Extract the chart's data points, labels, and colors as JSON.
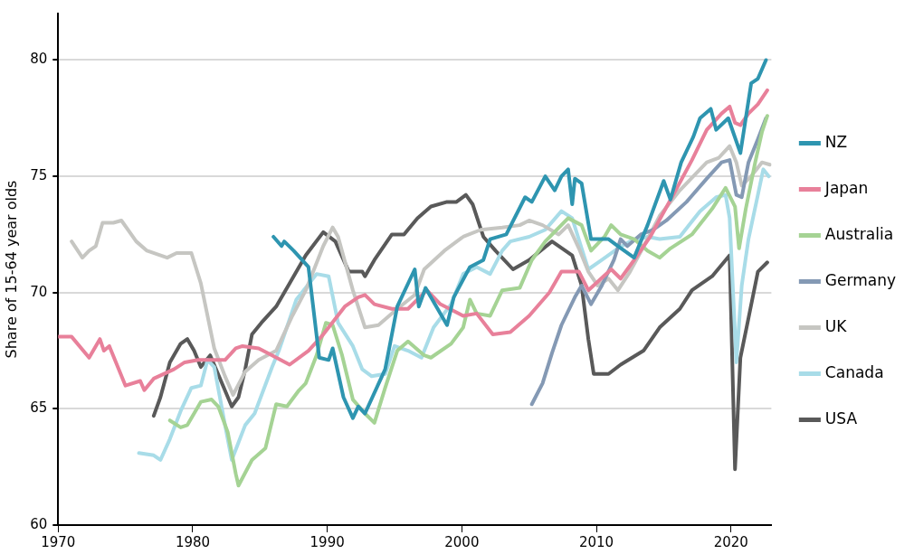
{
  "chart_data": {
    "type": "line",
    "ylabel": "Share of 15-64 year olds",
    "xlim": [
      1970,
      2023
    ],
    "xticks": [
      1970,
      1980,
      1990,
      2000,
      2010,
      2020
    ],
    "ylim": [
      60,
      82
    ],
    "yticks": [
      60,
      65,
      70,
      75,
      80
    ],
    "grid": "y",
    "legend": "right",
    "marker": "none",
    "line_style": "solid",
    "series": [
      {
        "name": "NZ",
        "color": "#2e95b0",
        "x": [
          1986.0,
          1986.6,
          1986.8,
          1987.5,
          1988.6,
          1989.4,
          1990.1,
          1990.4,
          1991.2,
          1991.9,
          1992.3,
          1992.8,
          1994.3,
          1995.2,
          1996.5,
          1996.8,
          1997.3,
          1998.5,
          1998.9,
          1999.4,
          2000.6,
          2001.6,
          2002.1,
          2003.3,
          2004.7,
          2005.2,
          2006.2,
          2006.9,
          2007.4,
          2007.9,
          2008.2,
          2008.4,
          2008.9,
          2009.6,
          2010.9,
          2011.6,
          2012.8,
          2013.8,
          2015.0,
          2015.5,
          2016.3,
          2017.2,
          2017.7,
          2018.5,
          2018.9,
          2019.8,
          2020.7,
          2021.5,
          2022.0,
          2022.6
        ],
        "values": [
          72.4,
          72.0,
          72.2,
          71.8,
          71.1,
          67.2,
          67.1,
          67.6,
          65.5,
          64.6,
          65.1,
          64.8,
          66.7,
          69.4,
          71.0,
          69.4,
          70.2,
          69.0,
          68.6,
          69.8,
          71.1,
          71.4,
          72.3,
          72.5,
          74.1,
          73.9,
          75.0,
          74.4,
          75.0,
          75.3,
          73.8,
          74.9,
          74.7,
          72.3,
          72.3,
          72.0,
          71.5,
          72.9,
          74.8,
          74.0,
          75.6,
          76.7,
          77.5,
          77.9,
          77.0,
          77.5,
          76.0,
          79.0,
          79.2,
          80.0
        ]
      },
      {
        "name": "Japan",
        "color": "#e8809a",
        "x": [
          1970.0,
          1971.0,
          1972.3,
          1973.1,
          1973.4,
          1973.8,
          1975.0,
          1976.1,
          1976.4,
          1977.1,
          1978.6,
          1979.4,
          1980.4,
          1981.4,
          1982.4,
          1983.2,
          1983.7,
          1984.9,
          1985.9,
          1987.2,
          1988.6,
          1989.7,
          1991.3,
          1992.3,
          1992.8,
          1993.5,
          1994.8,
          1996.0,
          1997.4,
          1998.4,
          2000.1,
          2001.1,
          2002.3,
          2003.6,
          2005.0,
          2006.5,
          2007.4,
          2008.7,
          2009.4,
          2011.1,
          2011.8,
          2012.8,
          2014.0,
          2015.7,
          2017.1,
          2018.2,
          2019.3,
          2019.9,
          2020.3,
          2020.7,
          2021.3,
          2022.0,
          2022.7
        ],
        "values": [
          68.1,
          68.1,
          67.2,
          68.0,
          67.5,
          67.7,
          66.0,
          66.2,
          65.8,
          66.3,
          66.7,
          67.0,
          67.1,
          67.1,
          67.1,
          67.6,
          67.7,
          67.6,
          67.3,
          66.9,
          67.5,
          68.2,
          69.4,
          69.8,
          69.9,
          69.5,
          69.3,
          69.3,
          70.1,
          69.5,
          69.0,
          69.1,
          68.2,
          68.3,
          69.0,
          70.0,
          70.9,
          70.9,
          70.1,
          71.0,
          70.6,
          71.4,
          72.4,
          74.2,
          75.7,
          77.0,
          77.7,
          78.0,
          77.3,
          77.2,
          77.7,
          78.1,
          78.7
        ]
      },
      {
        "name": "Australia",
        "color": "#a5d394",
        "x": [
          1978.3,
          1979.1,
          1979.6,
          1980.6,
          1981.4,
          1981.9,
          1982.6,
          1983.2,
          1983.4,
          1984.4,
          1985.4,
          1986.2,
          1987.0,
          1987.9,
          1988.4,
          1989.2,
          1989.9,
          1990.4,
          1991.1,
          1991.9,
          1992.8,
          1993.5,
          1994.3,
          1995.2,
          1996.0,
          1997.2,
          1997.7,
          1999.2,
          2000.1,
          2000.6,
          2001.1,
          2002.1,
          2003.0,
          2004.3,
          2005.2,
          2006.2,
          2007.9,
          2008.9,
          2009.6,
          2010.6,
          2011.1,
          2011.8,
          2012.8,
          2013.8,
          2014.7,
          2015.5,
          2017.1,
          2018.6,
          2019.6,
          2020.3,
          2020.6,
          2021.1,
          2021.8,
          2022.3,
          2022.7
        ],
        "values": [
          64.5,
          64.2,
          64.3,
          65.3,
          65.4,
          65.1,
          64.0,
          62.2,
          61.7,
          62.8,
          63.3,
          65.2,
          65.1,
          65.8,
          66.1,
          67.3,
          68.7,
          68.6,
          67.3,
          65.4,
          64.8,
          64.4,
          65.9,
          67.5,
          67.9,
          67.3,
          67.2,
          67.8,
          68.5,
          69.7,
          69.1,
          69.0,
          70.1,
          70.2,
          71.4,
          72.2,
          73.2,
          72.9,
          71.8,
          72.4,
          72.9,
          72.5,
          72.3,
          71.8,
          71.5,
          71.9,
          72.5,
          73.6,
          74.5,
          73.7,
          71.9,
          73.6,
          75.6,
          76.9,
          77.6
        ]
      },
      {
        "name": "Germany",
        "color": "#8499b4",
        "x": [
          2005.2,
          2006.0,
          2006.7,
          2007.4,
          2008.4,
          2008.9,
          2009.6,
          2010.4,
          2011.3,
          2011.8,
          2012.3,
          2013.3,
          2014.2,
          2015.2,
          2016.7,
          2018.2,
          2019.3,
          2019.9,
          2020.4,
          2020.8,
          2021.3,
          2022.0,
          2022.6
        ],
        "values": [
          65.2,
          66.1,
          67.4,
          68.6,
          69.8,
          70.3,
          69.5,
          70.3,
          71.4,
          72.3,
          72.0,
          72.5,
          72.7,
          73.1,
          73.9,
          74.9,
          75.6,
          75.7,
          74.2,
          74.1,
          75.6,
          76.6,
          77.5
        ]
      },
      {
        "name": "UK",
        "color": "#c6c6c2",
        "x": [
          1971.0,
          1971.8,
          1972.3,
          1972.8,
          1973.3,
          1974.1,
          1974.7,
          1975.8,
          1976.6,
          1978.1,
          1978.8,
          1979.9,
          1980.6,
          1981.6,
          1982.4,
          1983.0,
          1983.9,
          1984.9,
          1986.2,
          1987.4,
          1988.4,
          1989.7,
          1990.4,
          1990.8,
          1991.9,
          1992.8,
          1993.8,
          1995.2,
          1996.5,
          1997.2,
          1998.7,
          2000.1,
          2001.4,
          2003.0,
          2004.3,
          2005.0,
          2006.0,
          2007.2,
          2007.9,
          2008.7,
          2009.4,
          2010.1,
          2010.9,
          2011.6,
          2012.5,
          2013.8,
          2014.7,
          2016.2,
          2018.2,
          2019.1,
          2019.9,
          2020.4,
          2020.8,
          2021.5,
          2022.3,
          2022.9
        ],
        "values": [
          72.2,
          71.5,
          71.8,
          72.0,
          73.0,
          73.0,
          73.1,
          72.2,
          71.8,
          71.5,
          71.7,
          71.7,
          70.4,
          67.6,
          66.4,
          65.6,
          66.6,
          67.1,
          67.5,
          69.0,
          70.1,
          72.0,
          72.8,
          72.4,
          70.1,
          68.5,
          68.6,
          69.3,
          69.9,
          71.0,
          71.8,
          72.4,
          72.7,
          72.8,
          72.9,
          73.1,
          72.9,
          72.5,
          72.9,
          71.9,
          70.9,
          70.3,
          70.6,
          70.1,
          70.9,
          72.3,
          73.3,
          74.4,
          75.6,
          75.8,
          76.3,
          75.6,
          74.6,
          75.0,
          75.6,
          75.5
        ]
      },
      {
        "name": "Canada",
        "color": "#a8dce8",
        "x": [
          1976.0,
          1977.1,
          1977.6,
          1978.3,
          1979.1,
          1979.9,
          1980.6,
          1981.1,
          1981.6,
          1982.4,
          1982.9,
          1983.5,
          1983.9,
          1984.6,
          1985.9,
          1986.4,
          1987.7,
          1989.2,
          1990.1,
          1990.8,
          1991.9,
          1992.6,
          1993.3,
          1994.3,
          1995.0,
          1996.0,
          1997.0,
          1997.9,
          1999.2,
          2000.1,
          2001.1,
          2002.1,
          2003.0,
          2003.6,
          2005.0,
          2006.2,
          2007.4,
          2008.2,
          2008.9,
          2009.4,
          2010.4,
          2011.6,
          2012.5,
          2013.8,
          2014.7,
          2016.2,
          2017.7,
          2018.9,
          2019.6,
          2019.9,
          2020.4,
          2020.8,
          2021.3,
          2022.0,
          2022.4,
          2022.8
        ],
        "values": [
          63.1,
          63.0,
          62.8,
          63.7,
          64.9,
          65.9,
          66.0,
          67.1,
          66.8,
          64.3,
          62.8,
          63.7,
          64.3,
          64.8,
          66.8,
          67.5,
          69.7,
          70.8,
          70.7,
          68.7,
          67.7,
          66.7,
          66.4,
          66.5,
          67.7,
          67.5,
          67.2,
          68.5,
          69.5,
          70.8,
          71.1,
          70.8,
          71.8,
          72.2,
          72.4,
          72.7,
          73.5,
          73.2,
          71.9,
          71.0,
          71.4,
          71.9,
          72.2,
          72.4,
          72.3,
          72.4,
          73.5,
          74.1,
          74.2,
          73.2,
          67.0,
          70.3,
          72.3,
          74.2,
          75.3,
          75.0
        ]
      },
      {
        "name": "USA",
        "color": "#595959",
        "x": [
          1977.1,
          1977.6,
          1978.3,
          1979.1,
          1979.6,
          1980.1,
          1980.6,
          1981.3,
          1982.1,
          1982.9,
          1983.4,
          1983.9,
          1984.4,
          1985.1,
          1986.2,
          1987.2,
          1988.1,
          1988.4,
          1989.7,
          1990.6,
          1991.6,
          1992.6,
          1992.8,
          1993.5,
          1994.8,
          1995.7,
          1996.7,
          1997.7,
          1998.9,
          1999.6,
          2000.3,
          2000.8,
          2001.6,
          2002.5,
          2003.8,
          2005.0,
          2006.7,
          2008.2,
          2008.9,
          2009.4,
          2009.8,
          2010.9,
          2011.8,
          2013.5,
          2014.7,
          2016.2,
          2017.1,
          2018.6,
          2019.9,
          2020.3,
          2020.7,
          2021.3,
          2022.0,
          2022.7
        ],
        "values": [
          64.7,
          65.5,
          67.0,
          67.8,
          68.0,
          67.5,
          66.8,
          67.3,
          66.2,
          65.1,
          65.5,
          66.7,
          68.2,
          68.7,
          69.4,
          70.4,
          71.3,
          71.6,
          72.6,
          72.2,
          70.9,
          70.9,
          70.7,
          71.4,
          72.5,
          72.5,
          73.2,
          73.7,
          73.9,
          73.9,
          74.2,
          73.8,
          72.4,
          71.8,
          71.0,
          71.4,
          72.2,
          71.6,
          70.3,
          68.0,
          66.5,
          66.5,
          66.9,
          67.5,
          68.5,
          69.3,
          70.1,
          70.7,
          71.6,
          62.4,
          67.2,
          68.9,
          70.9,
          71.3
        ]
      }
    ]
  }
}
